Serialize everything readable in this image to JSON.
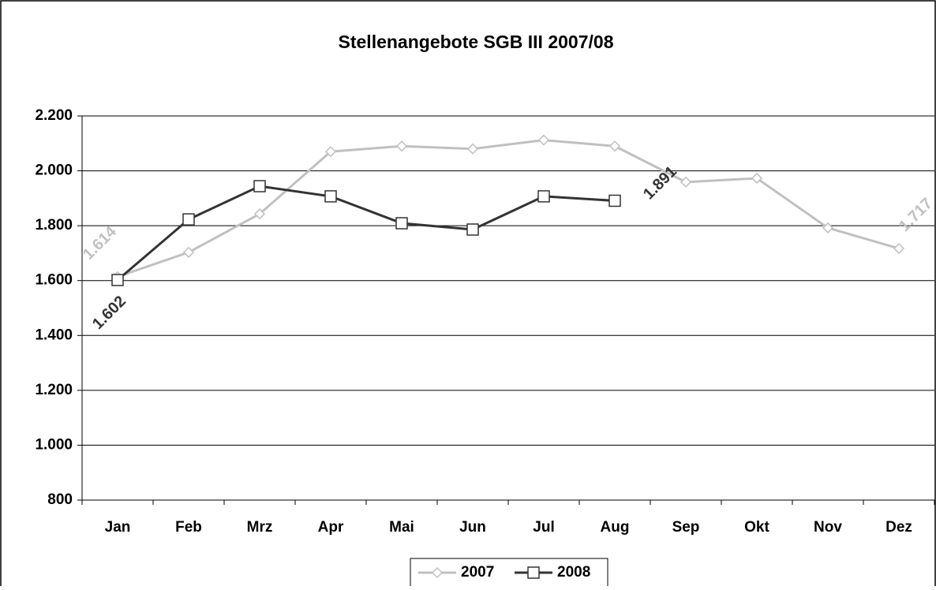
{
  "chart_data": {
    "type": "line",
    "title": "Stellenangebote SGB III 2007/08",
    "categories": [
      "Jan",
      "Feb",
      "Mrz",
      "Apr",
      "Mai",
      "Jun",
      "Jul",
      "Aug",
      "Sep",
      "Okt",
      "Nov",
      "Dez"
    ],
    "series": [
      {
        "name": "2007",
        "color": "#c0c0c0",
        "marker": "diamond",
        "values": [
          1614,
          1703,
          1843,
          2070,
          2090,
          2080,
          2112,
          2090,
          1959,
          1973,
          1792,
          1717
        ],
        "value_labels": [
          "1.614",
          null,
          null,
          null,
          null,
          null,
          null,
          null,
          null,
          null,
          null,
          "1.717"
        ]
      },
      {
        "name": "2008",
        "color": "#333333",
        "marker": "square",
        "values": [
          1602,
          1823,
          1944,
          1907,
          1809,
          1786,
          1907,
          1891,
          null,
          null,
          null,
          null
        ],
        "value_labels": [
          "1.602",
          null,
          null,
          null,
          null,
          null,
          null,
          "1.891",
          null,
          null,
          null,
          null
        ]
      }
    ],
    "ylim": [
      800,
      2200
    ],
    "yticks": [
      800,
      {
        "value": 1000,
        "label": "1.000"
      },
      {
        "value": 1200,
        "label": "1.200"
      },
      {
        "value": 1400,
        "label": "1.400"
      },
      {
        "value": 1600,
        "label": "1.600"
      },
      {
        "value": 1800,
        "label": "1.800"
      },
      {
        "value": 2000,
        "label": "2.000"
      },
      {
        "value": 2200,
        "label": "2.200"
      }
    ],
    "grid": true,
    "legend": "bottom"
  }
}
